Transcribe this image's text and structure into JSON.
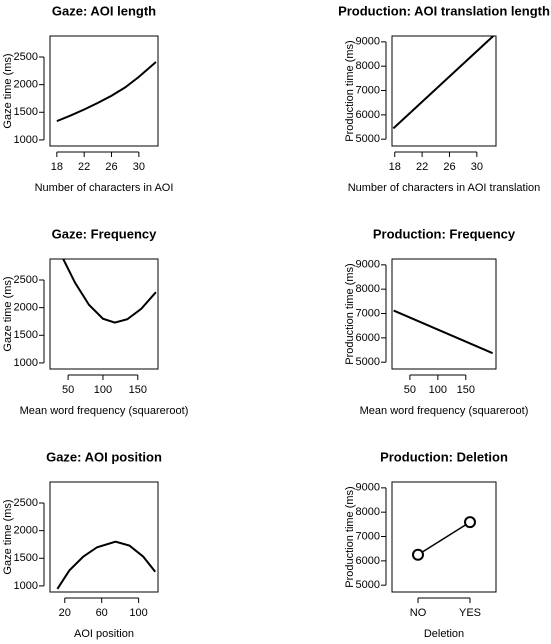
{
  "chart_data": [
    {
      "type": "line",
      "title": "Gaze: AOI length",
      "x_label": "Number of characters in AOI",
      "y_label": "Gaze time (ms)",
      "x": [
        18,
        20,
        22,
        24,
        26,
        28,
        30,
        32.5
      ],
      "values": [
        1340,
        1440,
        1550,
        1670,
        1800,
        1950,
        2140,
        2410
      ],
      "xlim": [
        17,
        32.8
      ],
      "ylim": [
        890,
        2880
      ],
      "xticks": [
        18,
        22,
        26,
        30
      ],
      "yticks": [
        1000,
        1500,
        2000,
        2500
      ],
      "color": "#000000"
    },
    {
      "type": "line",
      "title": "Production: AOI translation length",
      "x_label": "Number of characters in AOI translation",
      "y_label": "Production time (ms)",
      "x": [
        17.8,
        32.4
      ],
      "values": [
        5444,
        9240
      ],
      "xlim": [
        17.6,
        32.8
      ],
      "ylim": [
        4720,
        9240
      ],
      "xticks": [
        18,
        22,
        26,
        30
      ],
      "yticks": [
        5000,
        6000,
        7000,
        8000,
        9000
      ],
      "color": "#000000"
    },
    {
      "type": "line",
      "title": "Gaze: Frequency",
      "x_label": "Mean word frequency (squareroot)",
      "y_label": "Gaze time (ms)",
      "x": [
        43,
        60,
        80,
        100,
        117,
        135,
        155,
        176
      ],
      "values": [
        2880,
        2450,
        2050,
        1800,
        1730,
        1790,
        1980,
        2280
      ],
      "xlim": [
        24,
        179
      ],
      "ylim": [
        890,
        2880
      ],
      "xticks": [
        50,
        100,
        150
      ],
      "yticks": [
        1000,
        1500,
        2000,
        2500
      ],
      "color": "#000000"
    },
    {
      "type": "line",
      "title": "Production: Frequency",
      "x_label": "Mean word frequency (squareroot)",
      "y_label": "Production time (ms)",
      "x": [
        21,
        198
      ],
      "values": [
        7120,
        5370
      ],
      "xlim": [
        18,
        204
      ],
      "ylim": [
        4720,
        9240
      ],
      "xticks": [
        50,
        100,
        150
      ],
      "yticks": [
        5000,
        6000,
        7000,
        8000,
        9000
      ],
      "color": "#000000"
    },
    {
      "type": "line",
      "title": "Gaze: AOI position",
      "x_label": "AOI position",
      "y_label": "Gaze time (ms)",
      "x": [
        12,
        25,
        40,
        55,
        75,
        90,
        105,
        118
      ],
      "values": [
        945,
        1280,
        1530,
        1700,
        1800,
        1730,
        1530,
        1256
      ],
      "xlim": [
        4,
        121
      ],
      "ylim": [
        890,
        2880
      ],
      "xticks": [
        20,
        60,
        100
      ],
      "yticks": [
        1000,
        1500,
        2000,
        2500
      ],
      "color": "#000000"
    },
    {
      "type": "point-line",
      "title": "Production: Deletion",
      "x_label": "Deletion",
      "y_label": "Production time (ms)",
      "categories": [
        "NO",
        "YES"
      ],
      "values": [
        6250,
        7590
      ],
      "ylim": [
        4720,
        9240
      ],
      "yticks": [
        5000,
        6000,
        7000,
        8000,
        9000
      ],
      "color": "#000000"
    }
  ]
}
